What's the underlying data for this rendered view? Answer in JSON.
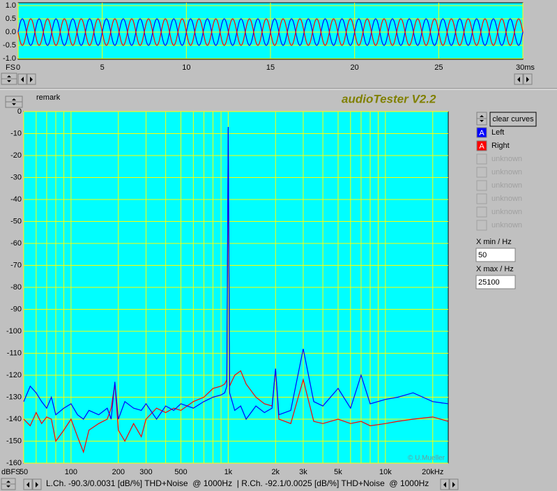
{
  "scope": {
    "y_unit": "FS",
    "xlim": [
      0,
      30
    ],
    "ylim": [
      -1,
      1
    ],
    "xticks": [
      0,
      5,
      10,
      15,
      20,
      25,
      {
        "value": 30,
        "label": "30ms"
      }
    ],
    "yticks": [
      {
        "value": 1,
        "label": "1.0"
      },
      {
        "value": 0.5,
        "label": "0.5"
      },
      {
        "value": 0,
        "label": "0.0"
      },
      {
        "value": -0.5,
        "label": "-0.5"
      },
      {
        "value": -1,
        "label": "-1.0"
      }
    ],
    "series": [
      {
        "name": "Left",
        "color": "#0000ff",
        "amplitude": 0.5,
        "frequency_hz": 1000,
        "phase_deg": 0
      },
      {
        "name": "Right",
        "color": "#ff0000",
        "amplitude": 0.5,
        "frequency_hz": 1000,
        "phase_deg": 180
      }
    ]
  },
  "spectrum": {
    "title": "audioTester V2.2",
    "remark": "remark",
    "y_unit": "dBFS",
    "copyright": "© U.Mueller",
    "log_x": true,
    "xlim": [
      50,
      25100
    ],
    "ylim": [
      -160,
      0
    ],
    "xticks": [
      50,
      100,
      200,
      300,
      500,
      {
        "value": 1000,
        "label": "1k"
      },
      {
        "value": 2000,
        "label": "2k"
      },
      {
        "value": 3000,
        "label": "3k"
      },
      {
        "value": 5000,
        "label": "5k"
      },
      {
        "value": 10000,
        "label": "10k"
      },
      {
        "value": 20000,
        "label": "20kHz"
      }
    ],
    "xgrid": [
      60,
      70,
      80,
      90,
      400,
      600,
      700,
      800,
      900,
      4000,
      6000,
      7000,
      8000,
      9000
    ],
    "yticks": [
      0,
      -10,
      -20,
      -30,
      -40,
      -50,
      -60,
      -70,
      -80,
      -90,
      -100,
      -110,
      -120,
      -130,
      -140,
      -150,
      -160
    ],
    "x": [
      50,
      55,
      60,
      65,
      70,
      75,
      80,
      90,
      100,
      110,
      120,
      130,
      150,
      170,
      180,
      190,
      200,
      220,
      250,
      280,
      300,
      350,
      400,
      450,
      500,
      600,
      700,
      800,
      900,
      950,
      980,
      1000,
      1020,
      1050,
      1100,
      1200,
      1300,
      1500,
      1700,
      1900,
      2000,
      2100,
      2500,
      3000,
      3500,
      4000,
      5000,
      6000,
      7000,
      8000,
      10000,
      12000,
      15000,
      20000,
      25100
    ],
    "series": [
      {
        "name": "Right",
        "color": "#ff0000",
        "values": [
          -140,
          -143,
          -137,
          -142,
          -139,
          -140,
          -150,
          -145,
          -140,
          -148,
          -155,
          -145,
          -142,
          -140,
          -135,
          -124,
          -145,
          -150,
          -142,
          -148,
          -140,
          -135,
          -137,
          -135,
          -136,
          -132,
          -130,
          -126,
          -125,
          -124,
          -122,
          -8,
          -125,
          -123,
          -120,
          -118,
          -124,
          -130,
          -133,
          -134,
          -117,
          -140,
          -142,
          -122,
          -141,
          -142,
          -140,
          -142,
          -141,
          -143,
          -142,
          -141,
          -140,
          -139,
          -141
        ]
      },
      {
        "name": "Left",
        "color": "#0000ff",
        "values": [
          -132,
          -125,
          -128,
          -132,
          -135,
          -130,
          -138,
          -135,
          -133,
          -138,
          -140,
          -136,
          -138,
          -135,
          -140,
          -123,
          -140,
          -132,
          -135,
          -136,
          -133,
          -140,
          -134,
          -136,
          -133,
          -135,
          -132,
          -130,
          -129,
          -128,
          -125,
          -7,
          -128,
          -131,
          -136,
          -134,
          -140,
          -134,
          -137,
          -135,
          -117,
          -138,
          -136,
          -108,
          -132,
          -134,
          -126,
          -135,
          -120,
          -133,
          -131,
          -130,
          -128,
          -132,
          -133
        ]
      }
    ]
  },
  "controls": {
    "clear_button": "clear curves",
    "legend": [
      {
        "letter": "A",
        "label": "Left",
        "color": "#0000ff"
      },
      {
        "letter": "A",
        "label": "Right",
        "color": "#ff0000"
      },
      {
        "label": "unknown"
      },
      {
        "label": "unknown"
      },
      {
        "label": "unknown"
      },
      {
        "label": "unknown"
      },
      {
        "label": "unknown"
      },
      {
        "label": "unknown"
      }
    ],
    "xmin_label": "X min / Hz",
    "xmin_value": "50",
    "xmax_label": "X max / Hz",
    "xmax_value": "25100"
  },
  "status": "L.Ch. -90.3/0.0031 [dB/%] THD+Noise  @ 1000Hz  | R.Ch. -92.1/0.0025 [dB/%] THD+Noise  @ 1000Hz"
}
